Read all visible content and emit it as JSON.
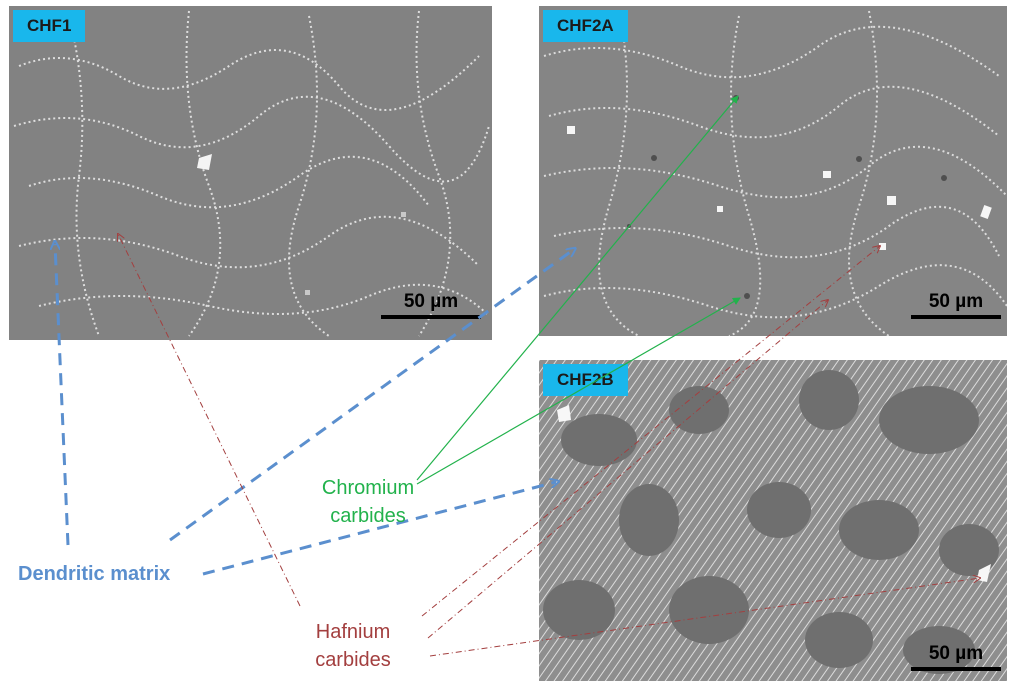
{
  "panels": {
    "chf1": {
      "label": "CHF1",
      "scale_label": "50 µm"
    },
    "chf2a": {
      "label": "CHF2A",
      "scale_label": "50 µm"
    },
    "chf2b": {
      "label": "CHF2B",
      "scale_label": "50 µm"
    }
  },
  "annotations": {
    "dendritic_matrix": "Dendritic matrix",
    "chromium_line1": "Chromium",
    "chromium_line2": "carbides",
    "hafnium_line1": "Hafnium",
    "hafnium_line2": "carbides"
  },
  "colors": {
    "tag_bg": "#19b7ec",
    "matrix_gray": "#828282",
    "dendritic_blue": "#5b8fce",
    "chromium_green": "#22b24c",
    "hafnium_red": "#a33f3f"
  }
}
